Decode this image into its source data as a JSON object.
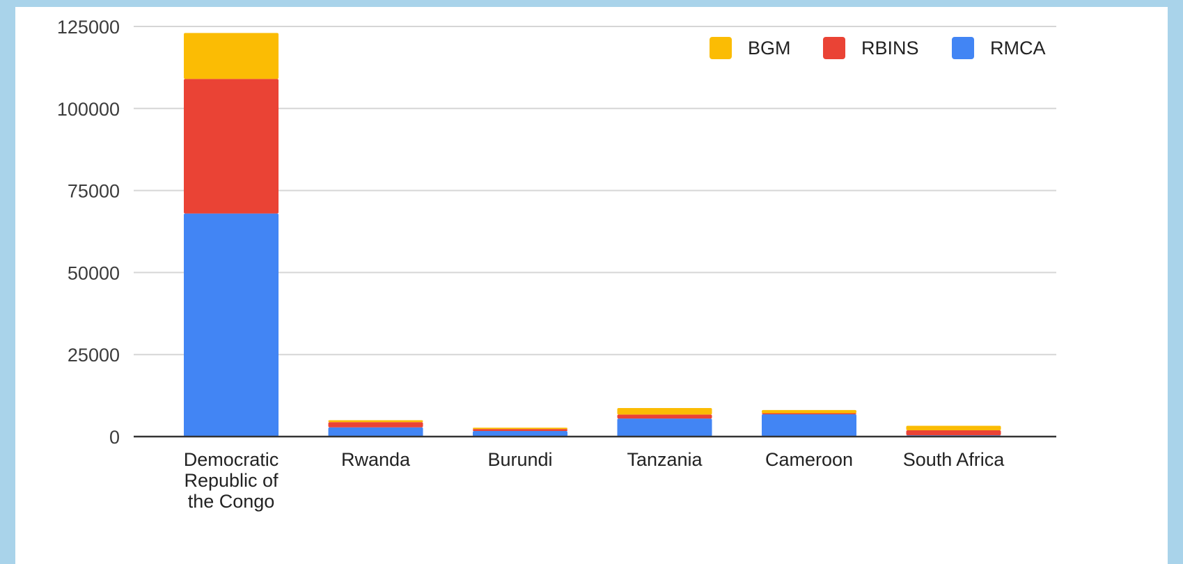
{
  "chart_data": {
    "type": "bar",
    "stacked": true,
    "categories": [
      [
        "Democratic",
        "Republic of",
        "the Congo"
      ],
      [
        "Rwanda"
      ],
      [
        "Burundi"
      ],
      [
        "Tanzania"
      ],
      [
        "Cameroon"
      ],
      [
        "South Africa"
      ]
    ],
    "series": [
      {
        "name": "RMCA",
        "color": "#4285f4",
        "values": [
          68000,
          2800,
          1700,
          5500,
          6800,
          400
        ]
      },
      {
        "name": "RBINS",
        "color": "#ea4335",
        "values": [
          41000,
          1600,
          600,
          1200,
          300,
          1500
        ]
      },
      {
        "name": "BGM",
        "color": "#fbbc04",
        "values": [
          14000,
          600,
          400,
          2000,
          1000,
          1400
        ]
      }
    ],
    "legend_order": [
      "BGM",
      "RBINS",
      "RMCA"
    ],
    "legend_position": "top-right",
    "ylim": [
      0,
      125000
    ],
    "yticks": [
      "0",
      "25000",
      "50000",
      "75000",
      "100000",
      "125000"
    ],
    "ytick_values": [
      0,
      25000,
      50000,
      75000,
      100000,
      125000
    ],
    "grid": true,
    "title": "",
    "xlabel": "",
    "ylabel": ""
  }
}
